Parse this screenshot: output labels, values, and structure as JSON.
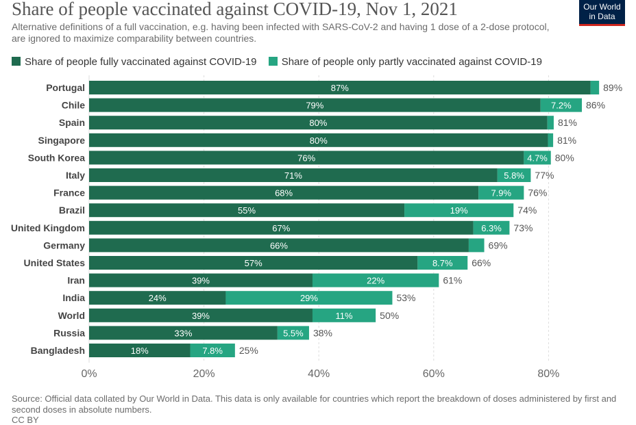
{
  "header": {
    "title": "Share of people vaccinated against COVID-19, Nov 1, 2021",
    "subtitle": "Alternative definitions of a full vaccination, e.g. having been infected with SARS-CoV-2 and having 1 dose of a 2-dose protocol, are ignored to maximize comparability between countries.",
    "logo_line1": "Our World",
    "logo_line2": "in Data"
  },
  "legend": {
    "full_label": "Share of people fully vaccinated against COVID-19",
    "partial_label": "Share of people only partly vaccinated against COVID-19"
  },
  "colors": {
    "full": "#1f6b4f",
    "partial": "#26a582",
    "axis_text": "#666666",
    "grid": "#dddddd"
  },
  "footer": {
    "source": "Source: Official data collated by Our World in Data. This data is only available for countries which report the breakdown of doses administered by first and second doses in absolute numbers.",
    "license": "CC BY"
  },
  "chart_data": {
    "type": "bar",
    "orientation": "horizontal",
    "stacked": true,
    "categories": [
      "Portugal",
      "Chile",
      "Spain",
      "Singapore",
      "South Korea",
      "Italy",
      "France",
      "Brazil",
      "United Kingdom",
      "Germany",
      "United States",
      "Iran",
      "India",
      "World",
      "Russia",
      "Bangladesh"
    ],
    "series": [
      {
        "name": "Share of people fully vaccinated against COVID-19",
        "values": [
          87.3,
          78.6,
          79.8,
          79.9,
          75.7,
          71.1,
          67.8,
          54.9,
          66.9,
          66.1,
          57.2,
          38.9,
          23.8,
          38.9,
          32.8,
          17.6
        ],
        "labels": [
          "87%",
          "79%",
          "80%",
          "80%",
          "76%",
          "71%",
          "68%",
          "55%",
          "67%",
          "66%",
          "57%",
          "39%",
          "24%",
          "39%",
          "33%",
          "18%"
        ]
      },
      {
        "name": "Share of people only partly vaccinated against COVID-19",
        "values": [
          1.5,
          7.2,
          1.1,
          0.9,
          4.7,
          5.8,
          7.9,
          19.0,
          6.3,
          2.7,
          8.7,
          22.0,
          29.0,
          11.0,
          5.5,
          7.8
        ],
        "labels": [
          "",
          "7.2%",
          "",
          "",
          "4.7%",
          "5.8%",
          "7.9%",
          "19%",
          "6.3%",
          "",
          "8.7%",
          "22%",
          "29%",
          "11%",
          "5.5%",
          "7.8%"
        ]
      }
    ],
    "totals": [
      "89%",
      "86%",
      "81%",
      "81%",
      "80%",
      "77%",
      "76%",
      "74%",
      "73%",
      "69%",
      "66%",
      "61%",
      "53%",
      "50%",
      "38%",
      "25%"
    ],
    "x_ticks": [
      0,
      20,
      40,
      60,
      80
    ],
    "x_tick_labels": [
      "0%",
      "20%",
      "40%",
      "60%",
      "80%"
    ],
    "xlim": [
      0,
      90
    ],
    "grid": true,
    "legend_position": "top"
  }
}
